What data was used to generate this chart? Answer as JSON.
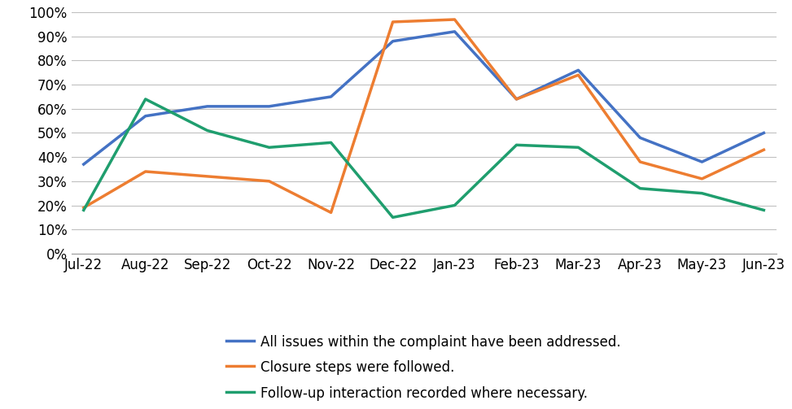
{
  "x_labels": [
    "Jul-22",
    "Aug-22",
    "Sep-22",
    "Oct-22",
    "Nov-22",
    "Dec-22",
    "Jan-23",
    "Feb-23",
    "Mar-23",
    "Apr-23",
    "May-23",
    "Jun-23"
  ],
  "series": [
    {
      "label": "All issues within the complaint have been addressed.",
      "color": "#4472C4",
      "values": [
        0.37,
        0.57,
        0.61,
        0.61,
        0.65,
        0.88,
        0.92,
        0.64,
        0.76,
        0.48,
        0.38,
        0.5
      ]
    },
    {
      "label": "Closure steps were followed.",
      "color": "#ED7D31",
      "values": [
        0.19,
        0.34,
        0.32,
        0.3,
        0.17,
        0.96,
        0.97,
        0.64,
        0.74,
        0.38,
        0.31,
        0.43
      ]
    },
    {
      "label": "Follow-up interaction recorded where necessary.",
      "color": "#1F9E6E",
      "values": [
        0.18,
        0.64,
        0.51,
        0.44,
        0.46,
        0.15,
        0.2,
        0.45,
        0.44,
        0.27,
        0.25,
        0.18
      ]
    }
  ],
  "ylim": [
    0,
    1.0
  ],
  "yticks": [
    0,
    0.1,
    0.2,
    0.3,
    0.4,
    0.5,
    0.6,
    0.7,
    0.8,
    0.9,
    1.0
  ],
  "line_width": 2.5,
  "grid_color": "#C0C0C0",
  "background_color": "#FFFFFF",
  "tick_fontsize": 12,
  "legend_fontsize": 12
}
